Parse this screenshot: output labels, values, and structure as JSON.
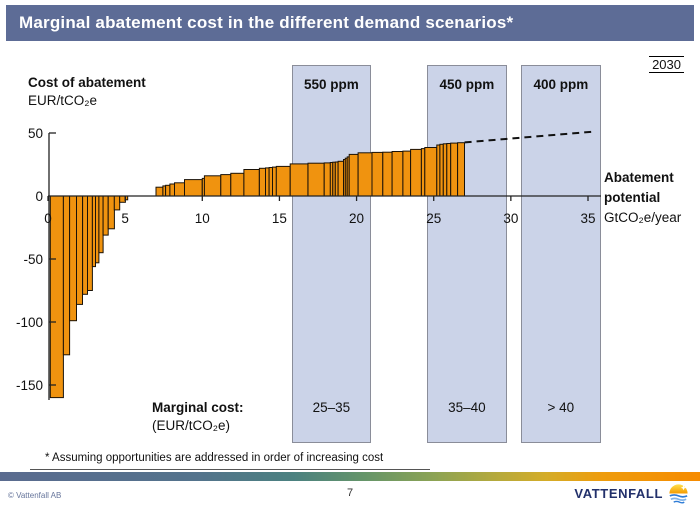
{
  "title_bar": {
    "text": "Marginal abatement cost in the different demand scenarios*"
  },
  "year_label": "2030",
  "chart": {
    "cost_axis_title": "Cost of abatement",
    "cost_axis_unit": "EUR/tCO₂e",
    "potential_axis_title_line1": "Abatement",
    "potential_axis_title_line2": "potential",
    "potential_axis_unit": "GtCO₂e/year"
  },
  "marginal_cost_row": {
    "label": "Marginal cost:",
    "unit": "(EUR/tCO₂e)"
  },
  "footnote": "* Assuming opportunities are addressed in order of increasing cost",
  "footer": {
    "copyright": "© Vattenfall AB",
    "page_number": "7",
    "brand": "VATTENFALL"
  },
  "icons": {
    "brand_logo": "sun-over-water"
  },
  "colors": {
    "title_bg": "#5D6C96",
    "bar": "#F0930F",
    "bar_border": "#1a1208",
    "band_bg": "#CBD3E8",
    "band_border": "#8a8d99",
    "axis": "#222222",
    "brand_navy": "#22306B",
    "accent_strip": [
      "#5A6B8F 0%",
      "#54738C 28%",
      "#4B8180 42%",
      "#659569 52%",
      "#8CA354 62%",
      "#B1A93F 70%",
      "#D4AC28 78%",
      "#EE9C0D 86%",
      "#F68B00 100%"
    ]
  },
  "chart_data": {
    "type": "bar",
    "title": "Marginal abatement cost in the different demand scenarios (2030)",
    "xlabel": "Abatement potential GtCO₂e/year",
    "ylabel": "Cost of abatement EUR/tCO₂e",
    "xlim": [
      0,
      36
    ],
    "ylim": [
      -175,
      55
    ],
    "grid": false,
    "x_ticks": [
      0,
      5,
      10,
      15,
      20,
      25,
      30,
      35
    ],
    "y_ticks": [
      50,
      0,
      -50,
      -100,
      -150
    ],
    "bars_format": "[abatement_start_Gt, abatement_end_Gt, cost_EUR_per_tCO2e]",
    "bars": [
      [
        0.15,
        1.0,
        -160
      ],
      [
        1.0,
        1.4,
        -126
      ],
      [
        1.4,
        1.85,
        -99
      ],
      [
        1.85,
        2.24,
        -86
      ],
      [
        2.24,
        2.56,
        -78
      ],
      [
        2.56,
        2.88,
        -75
      ],
      [
        2.88,
        3.08,
        -56
      ],
      [
        3.08,
        3.3,
        -53
      ],
      [
        3.3,
        3.57,
        -45
      ],
      [
        3.57,
        3.9,
        -31
      ],
      [
        3.9,
        4.3,
        -26
      ],
      [
        4.3,
        4.65,
        -11
      ],
      [
        4.65,
        5.02,
        -5
      ],
      [
        5.02,
        5.16,
        -3
      ],
      [
        7.0,
        7.45,
        7
      ],
      [
        7.45,
        7.62,
        8
      ],
      [
        7.62,
        7.9,
        8.5
      ],
      [
        7.9,
        8.2,
        9.5
      ],
      [
        8.2,
        8.85,
        10.5
      ],
      [
        8.85,
        10.0,
        13
      ],
      [
        10.0,
        10.14,
        14
      ],
      [
        10.14,
        11.2,
        16
      ],
      [
        11.2,
        11.85,
        17
      ],
      [
        11.85,
        12.7,
        18
      ],
      [
        12.7,
        13.7,
        21
      ],
      [
        13.7,
        14.1,
        22
      ],
      [
        14.1,
        14.33,
        22.3
      ],
      [
        14.33,
        14.55,
        22.6
      ],
      [
        14.55,
        14.8,
        22.9
      ],
      [
        14.8,
        15.7,
        23.5
      ],
      [
        15.7,
        16.85,
        25.5
      ],
      [
        16.85,
        17.9,
        26
      ],
      [
        17.9,
        18.3,
        26.3
      ],
      [
        18.3,
        18.46,
        26.6
      ],
      [
        18.46,
        18.62,
        26.8
      ],
      [
        18.62,
        18.8,
        27
      ],
      [
        18.8,
        19.15,
        27.5
      ],
      [
        19.15,
        19.27,
        29
      ],
      [
        19.27,
        19.39,
        30
      ],
      [
        19.39,
        19.52,
        31
      ],
      [
        19.52,
        20.1,
        33
      ],
      [
        20.1,
        21.0,
        34.3
      ],
      [
        21.0,
        21.7,
        34.6
      ],
      [
        21.7,
        22.3,
        34.8
      ],
      [
        22.3,
        23.0,
        35.3
      ],
      [
        23.0,
        23.5,
        35.6
      ],
      [
        23.5,
        24.2,
        37
      ],
      [
        24.2,
        24.42,
        37.6
      ],
      [
        24.42,
        25.2,
        38.5
      ],
      [
        25.2,
        25.4,
        40.5
      ],
      [
        25.4,
        25.62,
        41
      ],
      [
        25.62,
        25.85,
        41.4
      ],
      [
        25.85,
        26.1,
        41.7
      ],
      [
        26.1,
        26.55,
        42
      ],
      [
        26.55,
        27.0,
        42.3
      ]
    ],
    "projection_line": {
      "style": "dashed",
      "points": [
        [
          27.0,
          42.5
        ],
        [
          35.3,
          51
        ]
      ]
    },
    "scenario_bands": [
      {
        "label": "550 ppm",
        "x_range_gt": [
          15.81,
          20.93
        ],
        "marginal_cost": "25–35"
      },
      {
        "label": "450 ppm",
        "x_range_gt": [
          24.56,
          29.74
        ],
        "marginal_cost": "35–40"
      },
      {
        "label": "400 ppm",
        "x_range_gt": [
          30.65,
          35.83
        ],
        "marginal_cost": "> 40"
      }
    ],
    "legend": false
  }
}
